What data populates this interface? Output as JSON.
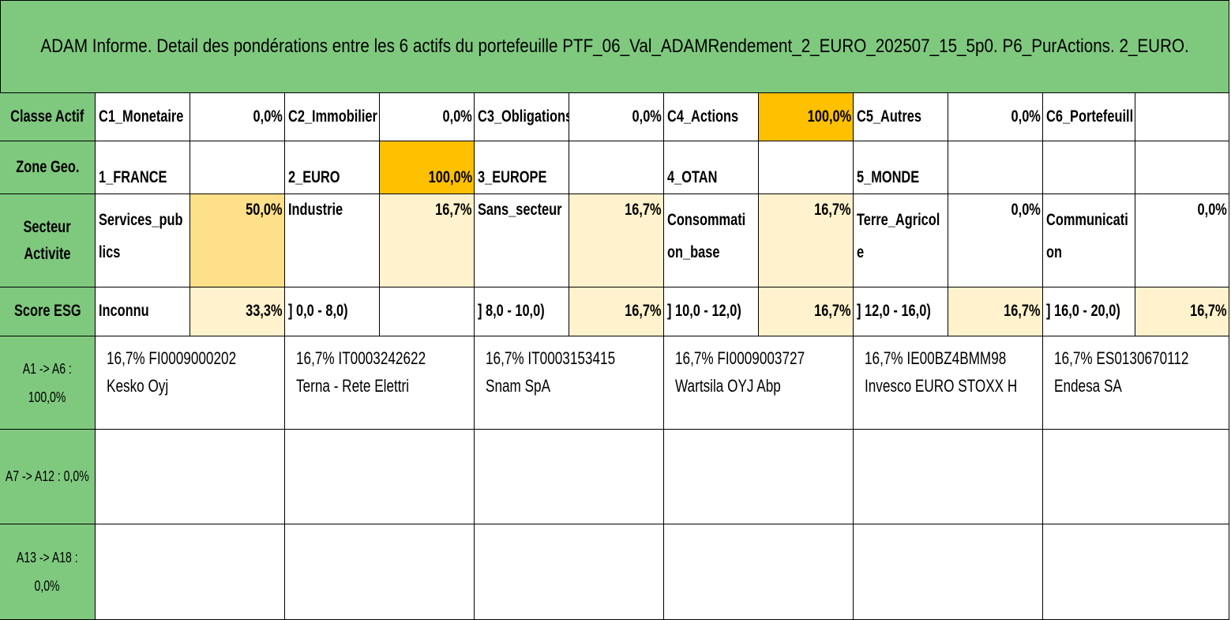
{
  "title": "ADAM Informe. Detail des pondérations entre les 6 actifs du portefeuille PTF_06_Val_ADAMRendement_2_EURO_202507_15_5p0. P6_PurActions. 2_EURO.",
  "rows": {
    "classe_actif": {
      "header": "Classe Actif",
      "items": [
        {
          "label": "C1_Monetaire",
          "value": "0,0%"
        },
        {
          "label": "C2_Immobilier",
          "value": "0,0%"
        },
        {
          "label": "C3_Obligations",
          "value": "0,0%"
        },
        {
          "label": "C4_Actions",
          "value": "100,0%"
        },
        {
          "label": "C5_Autres",
          "value": "0,0%"
        },
        {
          "label": "C6_Portefeuill",
          "value": ""
        }
      ]
    },
    "zone_geo": {
      "header": "Zone Geo.",
      "items": [
        {
          "label": "1_FRANCE",
          "value": ""
        },
        {
          "label": "2_EURO",
          "value": "100,0%"
        },
        {
          "label": "3_EUROPE",
          "value": ""
        },
        {
          "label": "4_OTAN",
          "value": ""
        },
        {
          "label": "5_MONDE",
          "value": ""
        },
        {
          "label": "",
          "value": ""
        }
      ]
    },
    "secteur": {
      "header_line1": "Secteur",
      "header_line2": "Activite",
      "items": [
        {
          "label1": "Services_pub",
          "label2": "lics",
          "value": "50,0%"
        },
        {
          "label1": "Industrie",
          "label2": "",
          "value": "16,7%"
        },
        {
          "label1": "Sans_secteur",
          "label2": "",
          "value": "16,7%"
        },
        {
          "label1": "Consommati",
          "label2": "on_base",
          "value": "16,7%"
        },
        {
          "label1": "Terre_Agricol",
          "label2": "e",
          "value": "0,0%"
        },
        {
          "label1": "Communicati",
          "label2": "on",
          "value": "0,0%"
        }
      ]
    },
    "score_esg": {
      "header": "Score ESG",
      "items": [
        {
          "label": "Inconnu",
          "value": "33,3%"
        },
        {
          "label": "] 0,0 - 8,0)",
          "value": ""
        },
        {
          "label": "] 8,0 - 10,0)",
          "value": "16,7%"
        },
        {
          "label": "] 10,0 - 12,0)",
          "value": "16,7%"
        },
        {
          "label": "] 12,0 - 16,0)",
          "value": "16,7%"
        },
        {
          "label": "] 16,0 - 20,0)",
          "value": "16,7%"
        }
      ]
    },
    "a1_a6": {
      "header_line1": "A1 -> A6 :",
      "header_line2": "100,0%",
      "assets": [
        {
          "line1": "16,7% FI0009000202",
          "line2": "Kesko Oyj"
        },
        {
          "line1": "16,7% IT0003242622",
          "line2": "Terna - Rete Elettri"
        },
        {
          "line1": "16,7% IT0003153415",
          "line2": "Snam SpA"
        },
        {
          "line1": "16,7% FI0009003727",
          "line2": "Wartsila OYJ Abp"
        },
        {
          "line1": "16,7% IE00BZ4BMM98",
          "line2": "Invesco EURO STOXX H"
        },
        {
          "line1": "16,7% ES0130670112",
          "line2": "Endesa SA"
        }
      ]
    },
    "a7_a12": {
      "header": "A7 -> A12 : 0,0%"
    },
    "a13_a18": {
      "header_line1": "A13 -> A18 :",
      "header_line2": "0,0%"
    }
  },
  "colors": {
    "header_green": "#7fc97f",
    "highlight_strong": "#ffc000",
    "highlight_medium": "#ffe08a",
    "highlight_light": "#fff2cc"
  }
}
